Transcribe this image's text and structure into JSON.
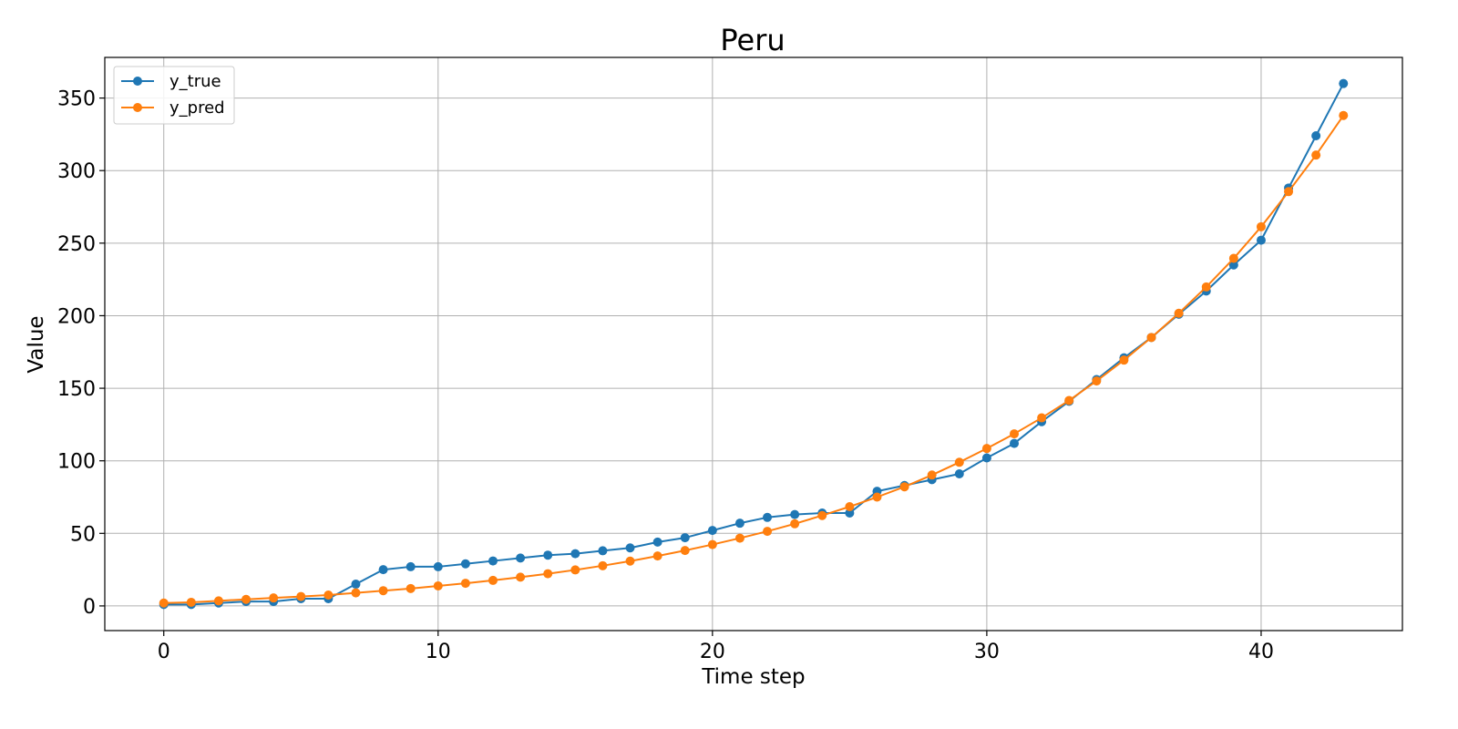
{
  "chart_data": {
    "type": "line",
    "title": "Peru",
    "xlabel": "Time step",
    "ylabel": "Value",
    "xlim": [
      -2.15,
      45.15
    ],
    "ylim": [
      -17,
      378
    ],
    "xticks": [
      0,
      10,
      20,
      30,
      40
    ],
    "yticks": [
      0,
      50,
      100,
      150,
      200,
      250,
      300,
      350
    ],
    "grid": true,
    "legend_position": "top-left",
    "x": [
      0,
      1,
      2,
      3,
      4,
      5,
      6,
      7,
      8,
      9,
      10,
      11,
      12,
      13,
      14,
      15,
      16,
      17,
      18,
      19,
      20,
      21,
      22,
      23,
      24,
      25,
      26,
      27,
      28,
      29,
      30,
      31,
      32,
      33,
      34,
      35,
      36,
      37,
      38,
      39,
      40,
      41,
      42,
      43
    ],
    "series": [
      {
        "name": "y_true",
        "color": "#1f77b4",
        "values": [
          1,
          1,
          2,
          3,
          3,
          5,
          5,
          15,
          25,
          27,
          27,
          29,
          31,
          33,
          35,
          36,
          38,
          40,
          44,
          47,
          52,
          57,
          61,
          63,
          64,
          64,
          79,
          83,
          87,
          91,
          102,
          112,
          127,
          141,
          156,
          171,
          185,
          201,
          217,
          235,
          252,
          288,
          324,
          360
        ]
      },
      {
        "name": "y_pred",
        "color": "#ff7f0e",
        "values": [
          2,
          2.5,
          3.5,
          4.5,
          5.5,
          6.5,
          7.5,
          9,
          10.5,
          12,
          13.8,
          15.6,
          17.6,
          19.8,
          22.2,
          24.8,
          27.7,
          30.9,
          34.4,
          38.2,
          42.3,
          46.7,
          51.4,
          56.6,
          62.3,
          68.4,
          75,
          82.1,
          90.2,
          99,
          108.5,
          118.6,
          129.6,
          141.6,
          155,
          169.4,
          185,
          201.7,
          219.8,
          239.5,
          261.3,
          285.5,
          310.7,
          338
        ]
      }
    ]
  }
}
